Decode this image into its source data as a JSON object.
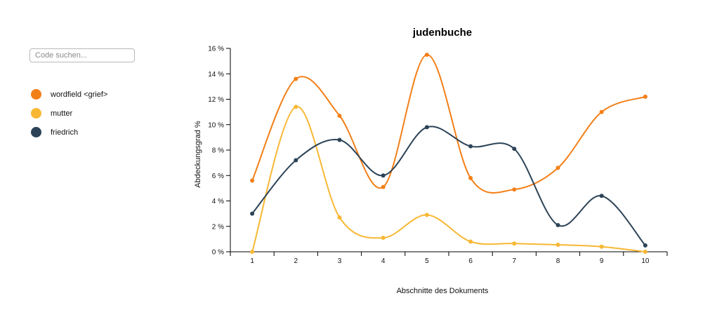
{
  "search": {
    "placeholder": "Code suchen..."
  },
  "legend": {
    "items": [
      {
        "label": "wordfield <grief>",
        "color": "#f37f17"
      },
      {
        "label": "mutter",
        "color": "#f8b734"
      },
      {
        "label": "friedrich",
        "color": "#2c4357"
      }
    ]
  },
  "chart_data": {
    "type": "line",
    "title": "judenbuche",
    "xlabel": "Abschnitte des Dokuments",
    "ylabel": "Abdeckungsgrad %",
    "categories": [
      "1",
      "2",
      "3",
      "4",
      "5",
      "6",
      "7",
      "8",
      "9",
      "10"
    ],
    "ylim": [
      0,
      16
    ],
    "yticks": [
      0,
      2,
      4,
      6,
      8,
      10,
      12,
      14,
      16
    ],
    "ytick_labels": [
      "0 %",
      "2 %",
      "4 %",
      "6 %",
      "8 %",
      "10 %",
      "12 %",
      "14 %",
      "16 %"
    ],
    "curve": "smooth",
    "grid": false,
    "legend_position": "left",
    "series": [
      {
        "name": "wordfield <grief>",
        "color": "#f37f17",
        "values": [
          5.6,
          13.6,
          10.7,
          5.1,
          15.5,
          5.8,
          4.9,
          6.6,
          11.0,
          12.2
        ]
      },
      {
        "name": "mutter",
        "color": "#f8b734",
        "values": [
          0.0,
          11.4,
          2.7,
          1.1,
          2.9,
          0.8,
          0.65,
          0.55,
          0.4,
          0.0
        ]
      },
      {
        "name": "friedrich",
        "color": "#2c4357",
        "values": [
          3.0,
          7.2,
          8.8,
          6.0,
          9.8,
          8.3,
          8.1,
          2.1,
          4.4,
          0.5
        ]
      }
    ]
  }
}
